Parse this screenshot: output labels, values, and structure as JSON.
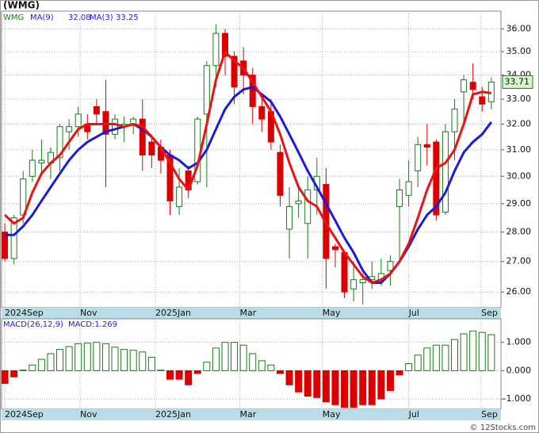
{
  "chart_data": [
    {
      "type": "candlestick",
      "title": "(WMG)",
      "ticker": "WMG",
      "log_scale": true,
      "grid": true,
      "up_color": "#1a7a1a",
      "down_color": "#dd0000",
      "open": [
        28.0,
        27.1,
        28.6,
        30.0,
        30.5,
        30.5,
        30.7,
        31.7,
        31.9,
        32.0,
        32.7,
        32.5,
        31.6,
        31.9,
        32.0,
        32.2,
        31.3,
        31.1,
        30.8,
        28.9,
        30.2,
        29.8,
        32.4,
        34.4,
        35.8,
        34.8,
        34.6,
        34.0,
        32.7,
        32.5,
        30.9,
        28.1,
        29.0,
        28.3,
        29.5,
        29.7,
        27.5,
        27.3,
        26.1,
        26.3,
        26.4,
        26.4,
        26.7,
        28.9,
        29.3,
        30.2,
        31.2,
        31.3,
        28.7,
        31.7,
        33.3,
        33.7,
        33.1,
        32.9
      ],
      "high": [
        28.3,
        28.6,
        30.2,
        31.0,
        31.4,
        31.1,
        32.0,
        32.2,
        32.7,
        32.4,
        33.0,
        33.8,
        32.4,
        32.3,
        32.3,
        33.0,
        31.6,
        31.4,
        31.0,
        30.3,
        30.4,
        32.3,
        34.6,
        36.2,
        36.0,
        35.0,
        35.2,
        34.3,
        33.0,
        33.0,
        31.2,
        29.6,
        29.6,
        30.0,
        30.7,
        30.3,
        27.6,
        27.3,
        27.0,
        26.6,
        27.0,
        27.1,
        27.2,
        29.9,
        30.6,
        31.5,
        32.0,
        31.4,
        32.0,
        33.0,
        34.0,
        34.5,
        33.5,
        33.9
      ],
      "low": [
        27.0,
        26.9,
        28.3,
        29.8,
        30.0,
        29.9,
        30.2,
        31.0,
        31.5,
        31.4,
        32.0,
        29.6,
        31.4,
        31.3,
        31.6,
        30.2,
        30.3,
        30.1,
        28.6,
        28.6,
        29.2,
        29.7,
        29.6,
        33.5,
        34.0,
        32.8,
        33.2,
        32.0,
        31.7,
        31.0,
        28.9,
        27.1,
        28.5,
        27.1,
        28.6,
        26.1,
        26.8,
        25.8,
        25.7,
        25.6,
        26.1,
        26.2,
        26.2,
        27.1,
        28.9,
        29.6,
        30.4,
        28.4,
        28.6,
        30.6,
        32.0,
        33.0,
        32.5,
        32.6
      ],
      "close": [
        27.1,
        28.5,
        29.9,
        30.6,
        30.6,
        30.9,
        31.9,
        31.9,
        32.4,
        31.7,
        32.4,
        31.6,
        32.2,
        32.0,
        32.2,
        30.8,
        30.8,
        30.6,
        29.1,
        29.6,
        29.5,
        32.2,
        34.4,
        35.8,
        34.8,
        33.5,
        34.0,
        32.7,
        32.2,
        31.3,
        29.3,
        28.9,
        29.1,
        29.5,
        30.0,
        27.1,
        27.4,
        26.0,
        26.4,
        26.4,
        26.5,
        26.6,
        27.0,
        29.5,
        29.8,
        31.2,
        31.1,
        28.6,
        31.7,
        32.6,
        33.8,
        33.4,
        32.8,
        33.71
      ],
      "series": [
        {
          "name": "MA(9)",
          "color": "#1c1cd8",
          "values": [
            27.9,
            27.9,
            28.2,
            28.6,
            29.1,
            29.6,
            30.1,
            30.6,
            31.0,
            31.3,
            31.5,
            31.7,
            31.8,
            31.9,
            32.0,
            31.8,
            31.5,
            31.1,
            30.8,
            30.6,
            30.3,
            30.5,
            31.0,
            31.8,
            32.6,
            33.1,
            33.4,
            33.5,
            33.2,
            32.9,
            32.3,
            31.6,
            30.9,
            30.2,
            29.6,
            29.0,
            28.4,
            27.8,
            27.3,
            26.7,
            26.3,
            26.3,
            26.6,
            27.0,
            27.5,
            28.1,
            28.6,
            28.9,
            29.4,
            30.2,
            30.9,
            31.3,
            31.6,
            32.08
          ]
        },
        {
          "name": "MA(3)",
          "color": "#ee1111",
          "values": [
            28.6,
            28.3,
            28.5,
            29.4,
            30.1,
            30.5,
            30.8,
            31.3,
            31.8,
            32.0,
            32.0,
            32.0,
            32.0,
            31.9,
            32.0,
            31.9,
            31.5,
            31.1,
            30.5,
            29.9,
            29.5,
            30.4,
            32.0,
            33.8,
            35.0,
            34.6,
            34.3,
            33.7,
            33.1,
            32.5,
            31.6,
            30.5,
            29.6,
            29.1,
            28.9,
            28.3,
            27.8,
            27.3,
            26.9,
            26.5,
            26.3,
            26.4,
            26.6,
            27.0,
            27.6,
            28.5,
            29.5,
            30.3,
            30.5,
            31.0,
            32.0,
            33.2,
            33.3,
            33.25
          ]
        }
      ],
      "xlim": [
        -0.35,
        54.05
      ],
      "xticks": [
        {
          "value": 0,
          "label": "2024Sep"
        },
        {
          "value": 8.2,
          "label": "Nov"
        },
        {
          "value": 16.4,
          "label": "2025Jan"
        },
        {
          "value": 25.6,
          "label": "Mar"
        },
        {
          "value": 34.6,
          "label": "May"
        },
        {
          "value": 44,
          "label": "Jul"
        },
        {
          "value": 51.9,
          "label": "Sep"
        }
      ],
      "ylim": [
        25.5,
        36.8
      ],
      "yticks": [
        {
          "value": 26,
          "label": "26.00"
        },
        {
          "value": 27,
          "label": "27.00"
        },
        {
          "value": 28,
          "label": "28.00"
        },
        {
          "value": 29,
          "label": "29.00"
        },
        {
          "value": 30,
          "label": "30.00"
        },
        {
          "value": 31,
          "label": "31.00"
        },
        {
          "value": 32,
          "label": "32.00"
        },
        {
          "value": 33,
          "label": "33.00"
        },
        {
          "value": 34,
          "label": "34.00"
        },
        {
          "value": 35,
          "label": "35.00"
        },
        {
          "value": 36,
          "label": "36.00"
        }
      ]
    },
    {
      "type": "bar",
      "name": "MACD(26,12,9)",
      "last_label": "MACD:1.269",
      "grid": true,
      "up_color": "#1a7a1a",
      "down_color": "#dd0000",
      "values": [
        -0.45,
        -0.22,
        0.02,
        0.2,
        0.4,
        0.6,
        0.75,
        0.85,
        0.95,
        0.97,
        1.0,
        0.95,
        0.83,
        0.75,
        0.72,
        0.66,
        0.47,
        0.02,
        -0.3,
        -0.3,
        -0.5,
        -0.1,
        0.3,
        0.8,
        1.0,
        1.0,
        0.9,
        0.6,
        0.35,
        0.2,
        -0.1,
        -0.5,
        -0.75,
        -0.9,
        -0.95,
        -1.1,
        -1.2,
        -1.3,
        -1.3,
        -1.2,
        -1.2,
        -1.0,
        -0.7,
        -0.15,
        0.25,
        0.55,
        0.8,
        0.9,
        0.9,
        1.1,
        1.3,
        1.4,
        1.35,
        1.269
      ],
      "xlim": [
        -0.35,
        54.05
      ],
      "xticks": [
        {
          "value": 0,
          "label": "2024Sep"
        },
        {
          "value": 8.2,
          "label": "Nov"
        },
        {
          "value": 16.4,
          "label": "2025Jan"
        },
        {
          "value": 25.6,
          "label": "Mar"
        },
        {
          "value": 34.6,
          "label": "May"
        },
        {
          "value": 44,
          "label": "Jul"
        },
        {
          "value": 51.9,
          "label": "Sep"
        }
      ],
      "ylim": [
        -1.36,
        1.83
      ],
      "yticks": [
        {
          "value": -1,
          "label": "-1.000"
        },
        {
          "value": 0,
          "label": "0.000"
        },
        {
          "value": 1,
          "label": "1.000"
        }
      ]
    }
  ],
  "footer": "© 12Stocks.com"
}
